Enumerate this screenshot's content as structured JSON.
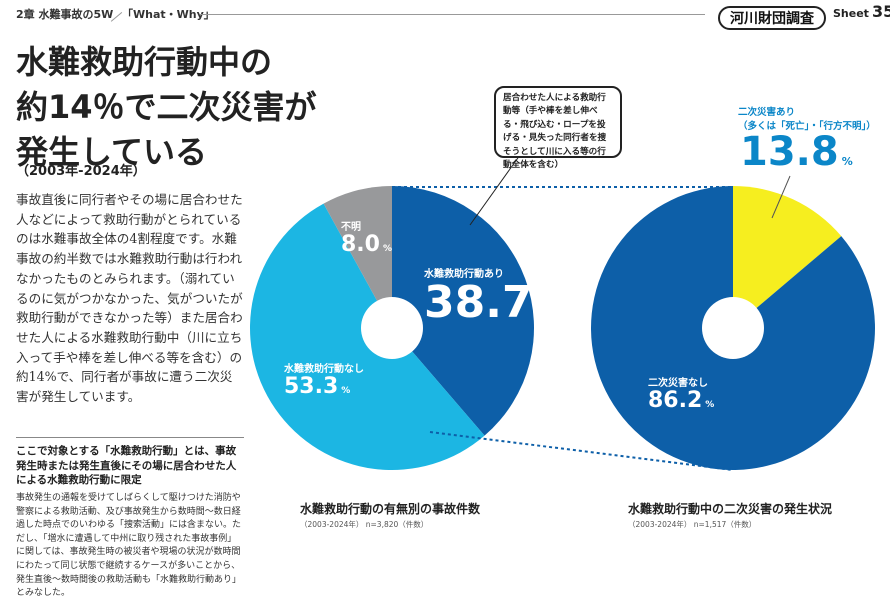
{
  "header": {
    "chapter": "2章 水難事故の5W",
    "section": "「What・Why」",
    "badge": "河川財団調査",
    "sheet_label": "Sheet",
    "sheet_number": "35"
  },
  "title": {
    "lines": [
      "水難救助行動中の",
      "約14％で二次災害が",
      "発生している"
    ],
    "period": "（2003年-2024年）"
  },
  "body_text": "事故直後に同行者やその場に居合わせた人などによって救助行動がとられているのは水難事故全体の4割程度です。水難事故の約半数では水難救助行動は行われなかったものとみられます。（溺れているのに気がつかなかった、気がついたが救助行動ができなかった等）また居合わせた人による水難救助行動中（川に立ち入って手や棒を差し伸べる等を含む）の約14%で、同行者が事故に遭う二次災害が発生しています。",
  "note": {
    "heading": "ここで対象とする「水難救助行動」とは、事故発生時または発生直後にその場に居合わせた人による水難救助行動に限定",
    "body": "事故発生の通報を受けてしばらくして駆けつけた消防や警察による救助活動、及び事故発生から数時間～数日経過した時点でのいわゆる「捜索活動」には含まない。ただし、「増水に遭遇して中州に取り残された事故事例」に関しては、事故発生時の被災者や現場の状況が数時間にわたって同じ状態で継続するケースが多いことから、発生直後～数時間後の救助活動も「水難救助行動あり」とみなした。"
  },
  "callout": "居合わせた人による救助行動等（手や棒を差し伸べる・飛び込む・ロープを投げる・見失った同行者を捜そうとして川に入る等の行動全体を含む）",
  "colors": {
    "dark_blue": "#0d5fa8",
    "light_blue": "#1cb6e3",
    "gray": "#98999b",
    "yellow": "#f6ee1f",
    "annotation_blue": "#0b86c8"
  },
  "chart_data": [
    {
      "type": "pie",
      "title": "水難救助行動の有無別の事故件数",
      "subtitle": "（2003-2024年） n=3,820（件数）",
      "slices": [
        {
          "name": "水難救助行動あり",
          "value": 38.7,
          "display": "38.7",
          "color": "#0d5fa8"
        },
        {
          "name": "水難救助行動なし",
          "value": 53.3,
          "display": "53.3",
          "color": "#1cb6e3"
        },
        {
          "name": "不明",
          "value": 8.0,
          "display": "8.0",
          "color": "#98999b"
        }
      ],
      "unit": "%"
    },
    {
      "type": "pie",
      "title": "水難救助行動中の二次災害の発生状況",
      "subtitle": "（2003-2024年） n=1,517（件数）",
      "slices": [
        {
          "name": "二次災害あり",
          "note": "（多くは「死亡」・「行方不明」）",
          "value": 13.8,
          "display": "13.8",
          "color": "#f6ee1f"
        },
        {
          "name": "二次災害なし",
          "value": 86.2,
          "display": "86.2",
          "color": "#0d5fa8"
        }
      ],
      "unit": "%"
    }
  ]
}
